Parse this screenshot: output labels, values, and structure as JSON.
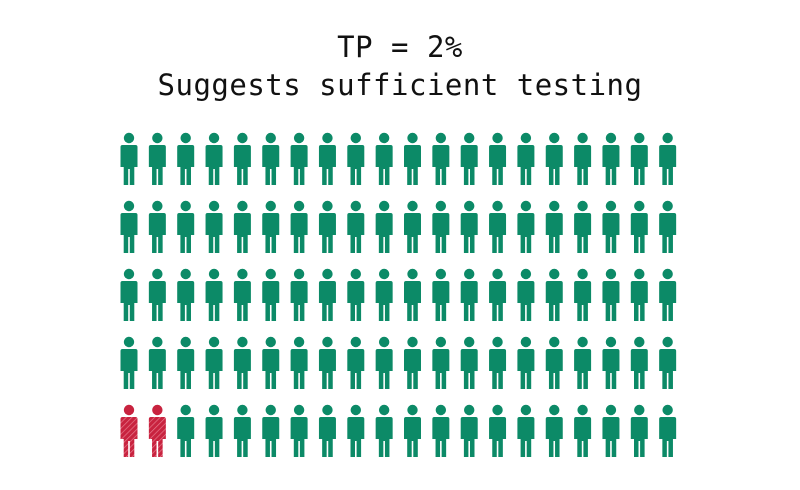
{
  "title": {
    "line1": "TP = 2%",
    "line2": "Suggests sufficient testing"
  },
  "pictogram": {
    "total": 100,
    "rows": 5,
    "columns": 20,
    "highlighted_count": 2,
    "highlighted_percent": 2,
    "icon": "person-icon",
    "colors": {
      "normal": "#0c8a67",
      "highlighted": "#c8233f",
      "highlighted_hatch": "#e8798c"
    }
  }
}
